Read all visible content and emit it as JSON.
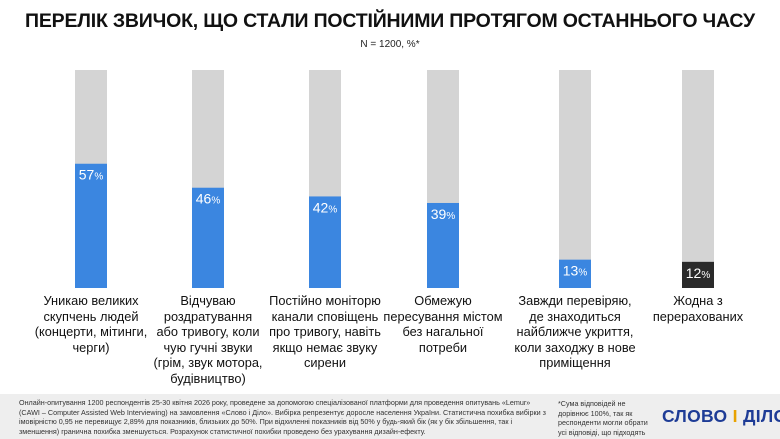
{
  "title": "ПЕРЕЛІК ЗВИЧОК, ЩО СТАЛИ ПОСТІЙНИМИ ПРОТЯГОМ ОСТАННЬОГО ЧАСУ",
  "subtitle": "N = 1200, %*",
  "colors": {
    "bar_fill": "#3b86e0",
    "bar_fill_none": "#2a2a2a",
    "bar_background": "#d4d4d4",
    "label_text": "#ffffff"
  },
  "chart_data": {
    "type": "bar",
    "ylim": [
      0,
      100
    ],
    "categories": [
      "Уникаю великих скупчень людей (концерти, мітинги, черги)",
      "Відчуваю роздратування або тривогу, коли чую гучні звуки (грім, звук мотора, будівництво)",
      "Постійно моніторю канали сповіщень про тривогу, навіть якщо немає звуку сирени",
      "Обмежую пересування містом без нагальної потреби",
      "Завжди перевіряю, де знаходиться найближче укриття, коли заходжу в нове приміщення",
      "Жодна з перерахованих"
    ],
    "category_lines": [
      [
        "Уникаю великих",
        "скупчень людей",
        "(концерти, мітинги,",
        "черги)"
      ],
      [
        "Відчуваю",
        "роздратування",
        "або тривогу, коли",
        "чую гучні звуки",
        "(грім, звук мотора,",
        "будівництво)"
      ],
      [
        "Постійно моніторю",
        "канали сповіщень",
        "про тривогу, навіть",
        "якщо немає звуку",
        "сирени"
      ],
      [
        "Обмежую",
        "пересування містом",
        "без нагальної",
        "потреби"
      ],
      [
        "Завжди перевіряю,",
        "де знаходиться",
        "найближче укриття,",
        "коли заходжу в нове",
        "приміщення"
      ],
      [
        "Жодна з",
        "перерахованих"
      ]
    ],
    "values": [
      57,
      46,
      42,
      39,
      13,
      12
    ],
    "value_labels": [
      "57",
      "46",
      "42",
      "39",
      "13",
      "12"
    ],
    "unit": "%"
  },
  "footer": {
    "methodology": "Онлайн-опитування 1200 респондентів 25-30 квітня 2026 року, проведене за допомогою спеціалізованої платформи для проведення опитувань «Lemur» (CAWI – Computer Assisted Web Interviewing) на замовлення «Слово і Діло». Вибірка репрезентує доросле населення України. Статистична похибка вибірки з імовірністю 0,95 не перевищує 2,89% для показників, близьких до 50%. При відхиленні показників від 50% у будь-який бік (як у бік збільшення, так і зменшення) гранична похибка зменшується. Розрахунок статистичної похибки проведено без урахування дизайн-ефекту.",
    "asterisk_note": "*Сума відповідей не дорівнює 100%, так як респонденти могли обрати усі відповіді, що підходять",
    "logo_left": "СЛОВО",
    "logo_amp": "І",
    "logo_right": "ДІЛО"
  }
}
